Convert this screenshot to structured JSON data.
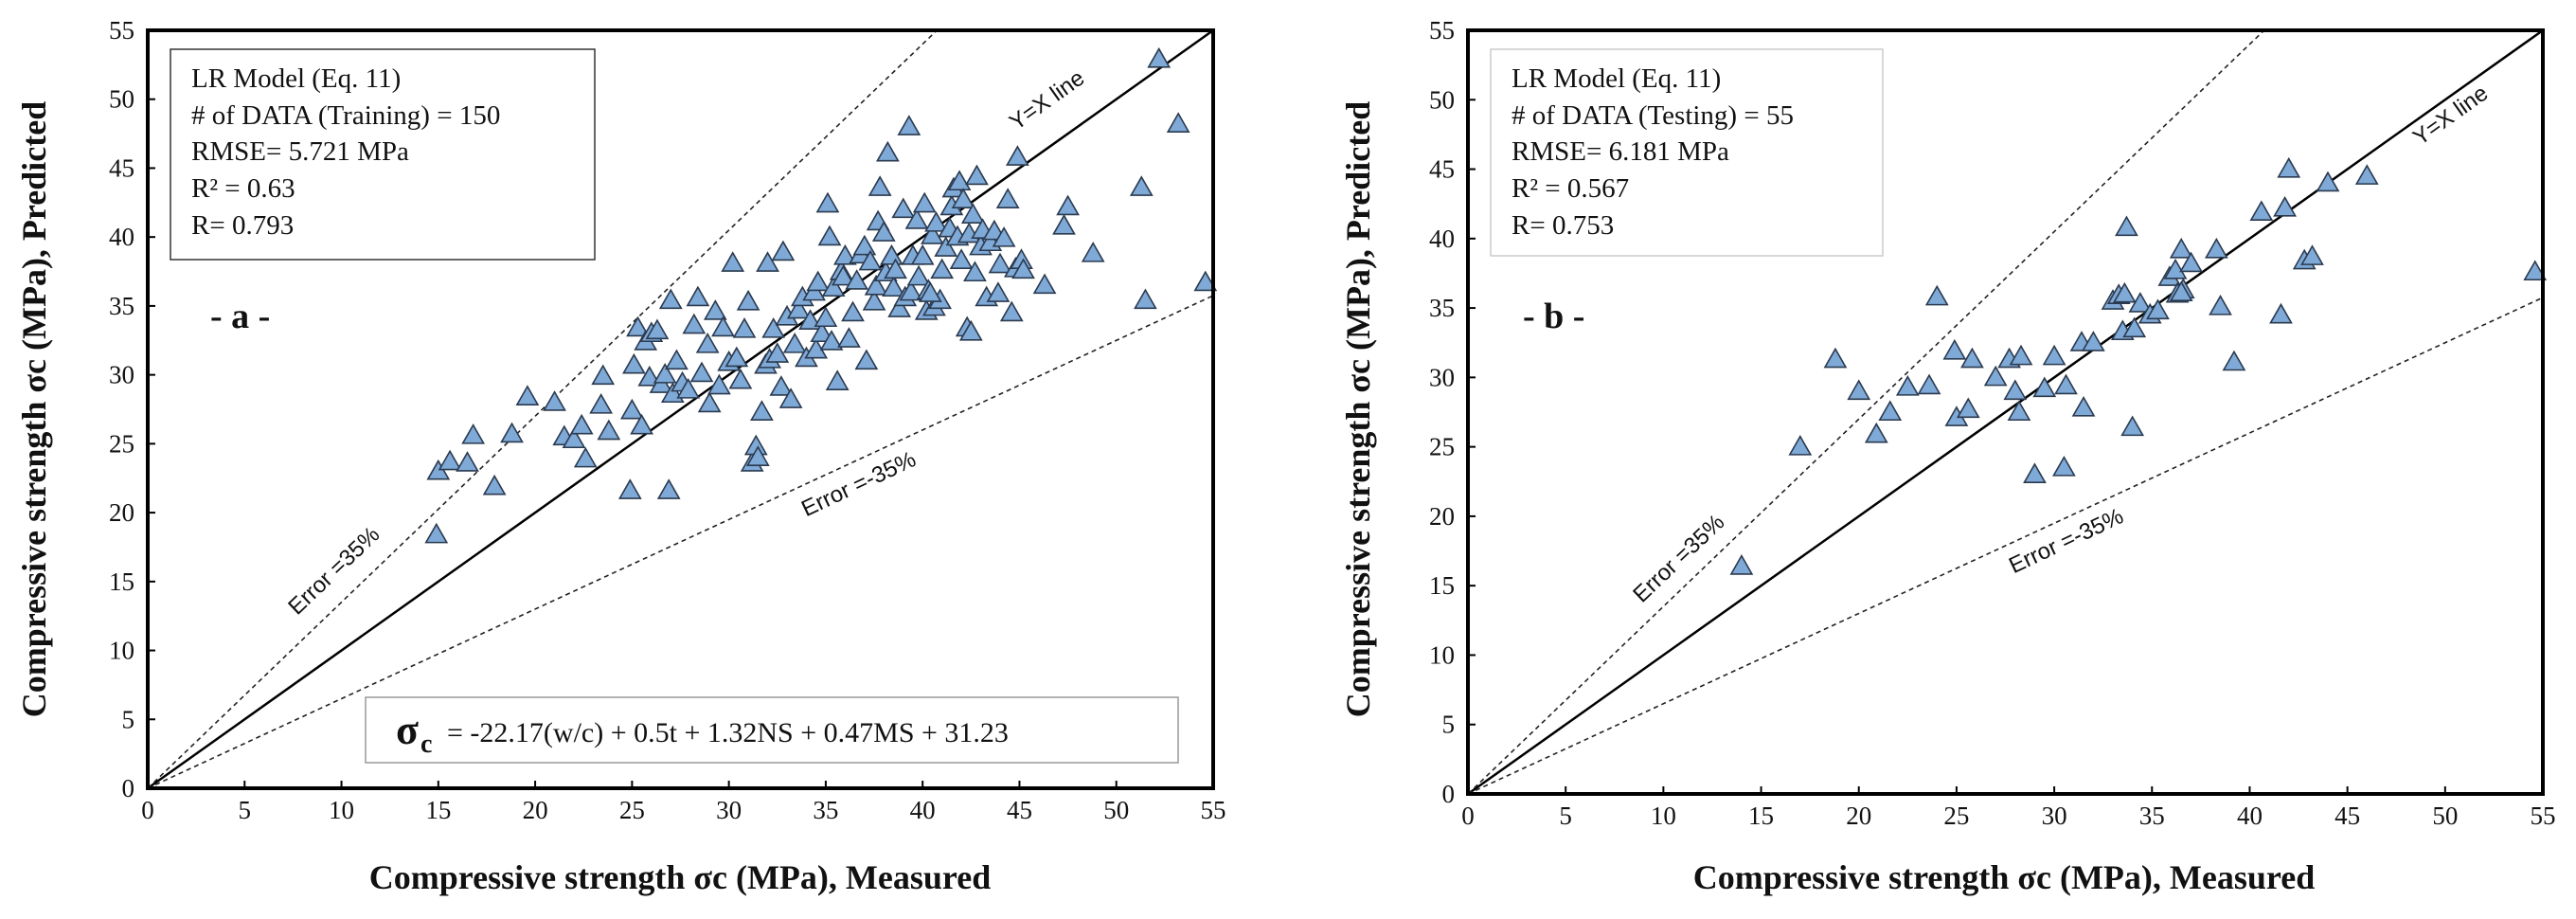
{
  "chart_data": [
    {
      "type": "scatter",
      "panel": "a",
      "panel_label": "- a -",
      "xlabel": "Compressive strength σc (MPa), Measured",
      "ylabel": "Compressive strength σc (MPa), Predicted",
      "xlim": [
        0,
        55
      ],
      "ylim": [
        0,
        55
      ],
      "xticks": [
        0,
        5,
        10,
        15,
        20,
        25,
        30,
        35,
        40,
        45,
        50,
        55
      ],
      "yticks": [
        0,
        5,
        10,
        15,
        20,
        25,
        30,
        35,
        40,
        45,
        50,
        55
      ],
      "marker": "triangle",
      "marker_color": "#7fa9d6",
      "line_labels": {
        "identity": "Y=X line",
        "upper": "Error =35%",
        "lower": "Error =-35%"
      },
      "info_box": [
        "LR Model (Eq. 11)",
        "# of DATA (Training) = 150",
        "RMSE= 5.721 MPa",
        "R² = 0.63",
        "R= 0.793"
      ],
      "equation": {
        "sigma": "σ",
        "sub": "c",
        "rhs": "= -22.17(w/c) + 0.5t + 1.32NS + 0.47MS + 31.23"
      },
      "points": [
        [
          14.9,
          18.4
        ],
        [
          15.0,
          23.0
        ],
        [
          15.6,
          23.7
        ],
        [
          16.5,
          23.6
        ],
        [
          16.8,
          25.6
        ],
        [
          17.9,
          21.9
        ],
        [
          18.8,
          25.7
        ],
        [
          19.6,
          28.4
        ],
        [
          21.0,
          28.0
        ],
        [
          21.5,
          25.5
        ],
        [
          22.0,
          25.3
        ],
        [
          22.4,
          26.3
        ],
        [
          22.6,
          23.9
        ],
        [
          23.4,
          27.8
        ],
        [
          23.5,
          29.9
        ],
        [
          23.8,
          25.9
        ],
        [
          24.9,
          21.6
        ],
        [
          25.0,
          27.4
        ],
        [
          25.1,
          30.7
        ],
        [
          25.3,
          33.4
        ],
        [
          25.5,
          26.3
        ],
        [
          25.7,
          32.4
        ],
        [
          25.9,
          29.8
        ],
        [
          26.0,
          33.0
        ],
        [
          26.3,
          33.2
        ],
        [
          26.5,
          29.3
        ],
        [
          26.7,
          30.0
        ],
        [
          26.9,
          21.6
        ],
        [
          27.0,
          35.4
        ],
        [
          27.1,
          28.6
        ],
        [
          27.3,
          31.0
        ],
        [
          27.6,
          29.4
        ],
        [
          27.9,
          28.9
        ],
        [
          28.2,
          33.6
        ],
        [
          28.4,
          35.6
        ],
        [
          28.6,
          30.1
        ],
        [
          28.9,
          32.2
        ],
        [
          29.0,
          27.9
        ],
        [
          29.3,
          34.6
        ],
        [
          29.5,
          29.2
        ],
        [
          29.7,
          33.4
        ],
        [
          30.0,
          30.9
        ],
        [
          30.2,
          38.1
        ],
        [
          30.4,
          31.2
        ],
        [
          30.6,
          29.6
        ],
        [
          30.8,
          33.3
        ],
        [
          31.0,
          35.3
        ],
        [
          31.2,
          23.6
        ],
        [
          31.4,
          24.8
        ],
        [
          31.5,
          24.0
        ],
        [
          31.7,
          27.3
        ],
        [
          31.9,
          30.7
        ],
        [
          32.0,
          38.1
        ],
        [
          32.1,
          31.1
        ],
        [
          32.3,
          33.3
        ],
        [
          32.5,
          31.5
        ],
        [
          32.7,
          29.1
        ],
        [
          32.8,
          38.9
        ],
        [
          33.0,
          34.2
        ],
        [
          33.2,
          28.2
        ],
        [
          33.4,
          32.2
        ],
        [
          33.6,
          34.7
        ],
        [
          33.8,
          35.6
        ],
        [
          34.0,
          31.2
        ],
        [
          34.2,
          33.9
        ],
        [
          34.4,
          36.0
        ],
        [
          34.5,
          31.8
        ],
        [
          34.6,
          36.7
        ],
        [
          34.8,
          33.0
        ],
        [
          35.0,
          34.1
        ],
        [
          35.1,
          42.4
        ],
        [
          35.2,
          40.0
        ],
        [
          35.3,
          32.4
        ],
        [
          35.4,
          36.3
        ],
        [
          35.6,
          29.5
        ],
        [
          35.8,
          37.5
        ],
        [
          35.9,
          37.1
        ],
        [
          36.0,
          38.6
        ],
        [
          36.2,
          32.6
        ],
        [
          36.4,
          34.5
        ],
        [
          36.6,
          36.8
        ],
        [
          36.8,
          38.7
        ],
        [
          37.0,
          39.3
        ],
        [
          37.1,
          31.0
        ],
        [
          37.3,
          38.2
        ],
        [
          37.5,
          35.3
        ],
        [
          37.6,
          36.4
        ],
        [
          37.7,
          41.1
        ],
        [
          37.8,
          43.6
        ],
        [
          38.0,
          40.3
        ],
        [
          38.1,
          37.4
        ],
        [
          38.2,
          46.1
        ],
        [
          38.4,
          38.6
        ],
        [
          38.5,
          36.3
        ],
        [
          38.6,
          37.6
        ],
        [
          38.8,
          34.8
        ],
        [
          39.0,
          42.0
        ],
        [
          39.1,
          35.6
        ],
        [
          39.3,
          48.0
        ],
        [
          39.4,
          36.0
        ],
        [
          39.5,
          38.6
        ],
        [
          39.7,
          41.2
        ],
        [
          39.8,
          37.1
        ],
        [
          40.0,
          38.6
        ],
        [
          40.1,
          42.4
        ],
        [
          40.2,
          34.6
        ],
        [
          40.3,
          36.1
        ],
        [
          40.5,
          40.1
        ],
        [
          40.6,
          34.9
        ],
        [
          40.7,
          41.0
        ],
        [
          40.9,
          35.4
        ],
        [
          41.0,
          37.6
        ],
        [
          41.2,
          39.2
        ],
        [
          41.4,
          40.6
        ],
        [
          41.5,
          42.2
        ],
        [
          41.6,
          43.5
        ],
        [
          41.8,
          40.0
        ],
        [
          41.9,
          44.0
        ],
        [
          42.0,
          38.3
        ],
        [
          42.1,
          42.7
        ],
        [
          42.3,
          33.4
        ],
        [
          42.4,
          40.2
        ],
        [
          42.5,
          33.1
        ],
        [
          42.6,
          41.6
        ],
        [
          42.7,
          37.4
        ],
        [
          42.8,
          44.4
        ],
        [
          43.0,
          39.3
        ],
        [
          43.1,
          40.5
        ],
        [
          43.3,
          35.6
        ],
        [
          43.5,
          39.6
        ],
        [
          43.7,
          40.4
        ],
        [
          43.9,
          35.9
        ],
        [
          44.0,
          38.0
        ],
        [
          44.2,
          39.9
        ],
        [
          44.4,
          42.7
        ],
        [
          44.6,
          34.5
        ],
        [
          44.8,
          37.7
        ],
        [
          44.9,
          45.8
        ],
        [
          45.1,
          38.3
        ],
        [
          45.2,
          37.6
        ],
        [
          46.3,
          36.5
        ],
        [
          47.3,
          40.8
        ],
        [
          47.5,
          42.2
        ],
        [
          48.8,
          38.8
        ],
        [
          51.3,
          43.6
        ],
        [
          51.5,
          35.4
        ],
        [
          52.2,
          52.9
        ],
        [
          53.2,
          48.2
        ],
        [
          54.6,
          36.7
        ],
        [
          40.4,
          35.9
        ]
      ]
    },
    {
      "type": "scatter",
      "panel": "b",
      "panel_label": "- b -",
      "xlabel": "Compressive strength σc (MPa), Measured",
      "ylabel": "Compressive strength σc (MPa), Predicted",
      "xlim": [
        0,
        55
      ],
      "ylim": [
        0,
        55
      ],
      "xticks": [
        0,
        5,
        10,
        15,
        20,
        25,
        30,
        35,
        40,
        45,
        50,
        55
      ],
      "yticks": [
        0,
        5,
        10,
        15,
        20,
        25,
        30,
        35,
        40,
        45,
        50,
        55
      ],
      "marker": "triangle",
      "marker_color": "#7fa9d6",
      "line_labels": {
        "identity": "Y=X line",
        "upper": "Error =35%",
        "lower": "Error =-35%"
      },
      "info_box": [
        "LR Model (Eq. 11)",
        "# of DATA (Testing) = 55",
        "RMSE= 6.181 MPa",
        "R² = 0.567",
        "R= 0.753"
      ],
      "points": [
        [
          14.0,
          16.4
        ],
        [
          17.0,
          25.0
        ],
        [
          18.8,
          31.3
        ],
        [
          20.0,
          29.0
        ],
        [
          20.9,
          25.9
        ],
        [
          21.6,
          27.5
        ],
        [
          22.5,
          29.3
        ],
        [
          23.6,
          29.4
        ],
        [
          24.0,
          35.8
        ],
        [
          24.9,
          31.9
        ],
        [
          25.0,
          27.1
        ],
        [
          25.6,
          27.7
        ],
        [
          25.8,
          31.3
        ],
        [
          27.0,
          30.0
        ],
        [
          27.7,
          31.3
        ],
        [
          28.0,
          29.0
        ],
        [
          28.2,
          27.5
        ],
        [
          28.3,
          31.5
        ],
        [
          29.0,
          23.0
        ],
        [
          29.5,
          29.2
        ],
        [
          30.0,
          31.5
        ],
        [
          30.5,
          23.5
        ],
        [
          30.6,
          29.4
        ],
        [
          31.4,
          32.5
        ],
        [
          31.5,
          27.8
        ],
        [
          32.0,
          32.5
        ],
        [
          33.0,
          35.5
        ],
        [
          33.3,
          35.9
        ],
        [
          33.5,
          33.3
        ],
        [
          33.7,
          40.8
        ],
        [
          34.0,
          26.4
        ],
        [
          34.1,
          33.5
        ],
        [
          34.4,
          35.3
        ],
        [
          34.9,
          34.5
        ],
        [
          35.3,
          34.8
        ],
        [
          35.9,
          37.2
        ],
        [
          36.2,
          37.7
        ],
        [
          36.3,
          36.0
        ],
        [
          36.5,
          39.2
        ],
        [
          36.6,
          36.3
        ],
        [
          37.0,
          38.2
        ],
        [
          38.3,
          39.2
        ],
        [
          38.5,
          35.1
        ],
        [
          39.2,
          31.1
        ],
        [
          40.6,
          41.9
        ],
        [
          41.6,
          34.5
        ],
        [
          41.8,
          42.2
        ],
        [
          42.0,
          45.0
        ],
        [
          42.8,
          38.4
        ],
        [
          43.2,
          38.7
        ],
        [
          44.0,
          44.0
        ],
        [
          46.0,
          44.5
        ],
        [
          54.6,
          37.6
        ],
        [
          36.5,
          36.1
        ],
        [
          33.6,
          36.0
        ]
      ]
    }
  ]
}
